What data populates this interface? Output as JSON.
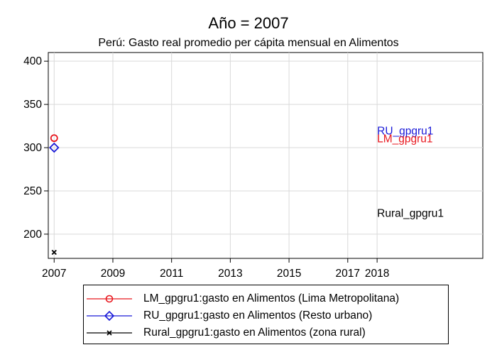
{
  "title": "Año = 2007",
  "subtitle": "Perú: Gasto real promedio per cápita mensual en Alimentos",
  "chart_data": {
    "type": "scatter",
    "title": "Año = 2007",
    "subtitle": "Perú: Gasto real promedio per cápita mensual en Alimentos",
    "xlabel": "",
    "ylabel": "",
    "xlim": [
      2006.8,
      2021.6
    ],
    "ylim": [
      172,
      410
    ],
    "x_ticks": [
      2007,
      2009,
      2011,
      2013,
      2015,
      2017,
      2018
    ],
    "x_tick_labels": [
      "2007",
      "2009",
      "2011",
      "2013",
      "2015",
      "2017",
      "2018"
    ],
    "y_ticks": [
      200,
      250,
      300,
      350,
      400
    ],
    "y_tick_labels": [
      "200",
      "250",
      "300",
      "350",
      "400"
    ],
    "grid": true,
    "legend_position": "bottom",
    "series": [
      {
        "key": "lm",
        "name": "LM_gpgru1:gasto en Alimentos (Lima Metropolitana)",
        "marker": "circle",
        "color": "#e8171e",
        "x": [
          2007
        ],
        "y": [
          311
        ]
      },
      {
        "key": "ru",
        "name": "RU_gpgru1:gasto en Alimentos (Resto urbano)",
        "marker": "diamond",
        "color": "#1a1ad8",
        "x": [
          2007
        ],
        "y": [
          300
        ]
      },
      {
        "key": "rural",
        "name": "Rural_gpgru1:gasto en Alimentos (zona rural)",
        "marker": "x",
        "color": "#000000",
        "x": [
          2007
        ],
        "y": [
          179
        ]
      }
    ],
    "annotations": [
      {
        "text": "RU_gpgru1",
        "x": 2018,
        "y": 320,
        "color": "#1a1ad8"
      },
      {
        "text": "LM_gpgru1",
        "x": 2018,
        "y": 311,
        "color": "#e8171e"
      },
      {
        "text": "Rural_gpgru1",
        "x": 2018,
        "y": 225,
        "color": "#000000"
      }
    ]
  }
}
